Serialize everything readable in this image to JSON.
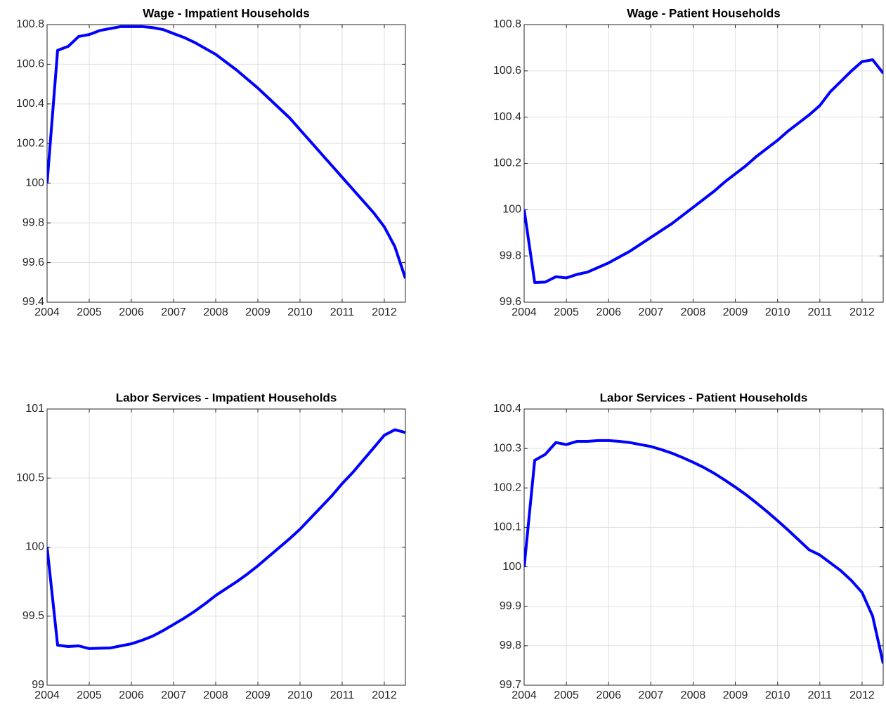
{
  "chart_data": [
    {
      "type": "line",
      "title": "Wage - Impatient Households",
      "color": "#0000ff",
      "grid": true,
      "x": [
        2004,
        2004.25,
        2004.5,
        2004.75,
        2005,
        2005.25,
        2005.5,
        2005.75,
        2006,
        2006.25,
        2006.5,
        2006.75,
        2007,
        2007.25,
        2007.5,
        2007.75,
        2008,
        2008.25,
        2008.5,
        2008.75,
        2009,
        2009.25,
        2009.5,
        2009.75,
        2010,
        2010.25,
        2010.5,
        2010.75,
        2011,
        2011.25,
        2011.5,
        2011.75,
        2012,
        2012.25,
        2012.5
      ],
      "values": [
        100.0,
        100.67,
        100.69,
        100.74,
        100.75,
        100.77,
        100.78,
        100.79,
        100.79,
        100.79,
        100.785,
        100.775,
        100.755,
        100.735,
        100.71,
        100.68,
        100.65,
        100.61,
        100.57,
        100.525,
        100.48,
        100.43,
        100.38,
        100.33,
        100.27,
        100.21,
        100.15,
        100.09,
        100.03,
        99.97,
        99.91,
        99.85,
        99.78,
        99.68,
        99.52
      ],
      "xlim": [
        2004,
        2012.5
      ],
      "xticks": [
        2004,
        2005,
        2006,
        2007,
        2008,
        2009,
        2010,
        2011,
        2012
      ],
      "ylim": [
        99.4,
        100.8
      ],
      "yticks": [
        99.4,
        99.6,
        99.8,
        100,
        100.2,
        100.4,
        100.6,
        100.8
      ]
    },
    {
      "type": "line",
      "title": "Wage - Patient Households",
      "color": "#0000ff",
      "grid": true,
      "x": [
        2004,
        2004.25,
        2004.5,
        2004.75,
        2005,
        2005.25,
        2005.5,
        2005.75,
        2006,
        2006.25,
        2006.5,
        2006.75,
        2007,
        2007.25,
        2007.5,
        2007.75,
        2008,
        2008.25,
        2008.5,
        2008.75,
        2009,
        2009.25,
        2009.5,
        2009.75,
        2010,
        2010.25,
        2010.5,
        2010.75,
        2011,
        2011.25,
        2011.5,
        2011.75,
        2012,
        2012.25,
        2012.5
      ],
      "values": [
        100.0,
        99.685,
        99.687,
        99.71,
        99.705,
        99.72,
        99.73,
        99.75,
        99.77,
        99.795,
        99.82,
        99.85,
        99.88,
        99.91,
        99.94,
        99.975,
        100.01,
        100.045,
        100.08,
        100.12,
        100.155,
        100.19,
        100.23,
        100.265,
        100.3,
        100.34,
        100.375,
        100.41,
        100.45,
        100.51,
        100.555,
        100.6,
        100.64,
        100.648,
        100.59
      ],
      "xlim": [
        2004,
        2012.5
      ],
      "xticks": [
        2004,
        2005,
        2006,
        2007,
        2008,
        2009,
        2010,
        2011,
        2012
      ],
      "ylim": [
        99.6,
        100.8
      ],
      "yticks": [
        99.6,
        99.8,
        100,
        100.2,
        100.4,
        100.6,
        100.8
      ]
    },
    {
      "type": "line",
      "title": "Labor Services - Impatient Households",
      "color": "#0000ff",
      "grid": true,
      "x": [
        2004,
        2004.25,
        2004.5,
        2004.75,
        2005,
        2005.25,
        2005.5,
        2005.75,
        2006,
        2006.25,
        2006.5,
        2006.75,
        2007,
        2007.25,
        2007.5,
        2007.75,
        2008,
        2008.25,
        2008.5,
        2008.75,
        2009,
        2009.25,
        2009.5,
        2009.75,
        2010,
        2010.25,
        2010.5,
        2010.75,
        2011,
        2011.25,
        2011.5,
        2011.75,
        2012,
        2012.25,
        2012.5
      ],
      "values": [
        100.0,
        99.29,
        99.28,
        99.285,
        99.265,
        99.268,
        99.27,
        99.285,
        99.3,
        99.325,
        99.355,
        99.395,
        99.44,
        99.485,
        99.535,
        99.59,
        99.65,
        99.7,
        99.75,
        99.805,
        99.865,
        99.93,
        99.995,
        100.06,
        100.13,
        100.21,
        100.29,
        100.37,
        100.46,
        100.54,
        100.63,
        100.72,
        100.81,
        100.85,
        100.83
      ],
      "xlim": [
        2004,
        2012.5
      ],
      "xticks": [
        2004,
        2005,
        2006,
        2007,
        2008,
        2009,
        2010,
        2011,
        2012
      ],
      "ylim": [
        99,
        101
      ],
      "yticks": [
        99,
        99.5,
        100,
        100.5,
        101
      ]
    },
    {
      "type": "line",
      "title": "Labor Services - Patient Households",
      "color": "#0000ff",
      "grid": true,
      "x": [
        2004,
        2004.25,
        2004.5,
        2004.75,
        2005,
        2005.25,
        2005.5,
        2005.75,
        2006,
        2006.25,
        2006.5,
        2006.75,
        2007,
        2007.25,
        2007.5,
        2007.75,
        2008,
        2008.25,
        2008.5,
        2008.75,
        2009,
        2009.25,
        2009.5,
        2009.75,
        2010,
        2010.25,
        2010.5,
        2010.75,
        2011,
        2011.25,
        2011.5,
        2011.75,
        2012,
        2012.25,
        2012.5
      ],
      "values": [
        100.0,
        100.27,
        100.285,
        100.315,
        100.31,
        100.318,
        100.318,
        100.32,
        100.32,
        100.318,
        100.315,
        100.31,
        100.305,
        100.297,
        100.288,
        100.277,
        100.265,
        100.252,
        100.237,
        100.22,
        100.202,
        100.183,
        100.162,
        100.14,
        100.117,
        100.093,
        100.068,
        100.043,
        100.03,
        100.01,
        99.99,
        99.965,
        99.935,
        99.875,
        99.755
      ],
      "xlim": [
        2004,
        2012.5
      ],
      "xticks": [
        2004,
        2005,
        2006,
        2007,
        2008,
        2009,
        2010,
        2011,
        2012
      ],
      "ylim": [
        99.7,
        100.4
      ],
      "yticks": [
        99.7,
        99.8,
        99.9,
        100,
        100.1,
        100.2,
        100.3,
        100.4
      ]
    }
  ]
}
